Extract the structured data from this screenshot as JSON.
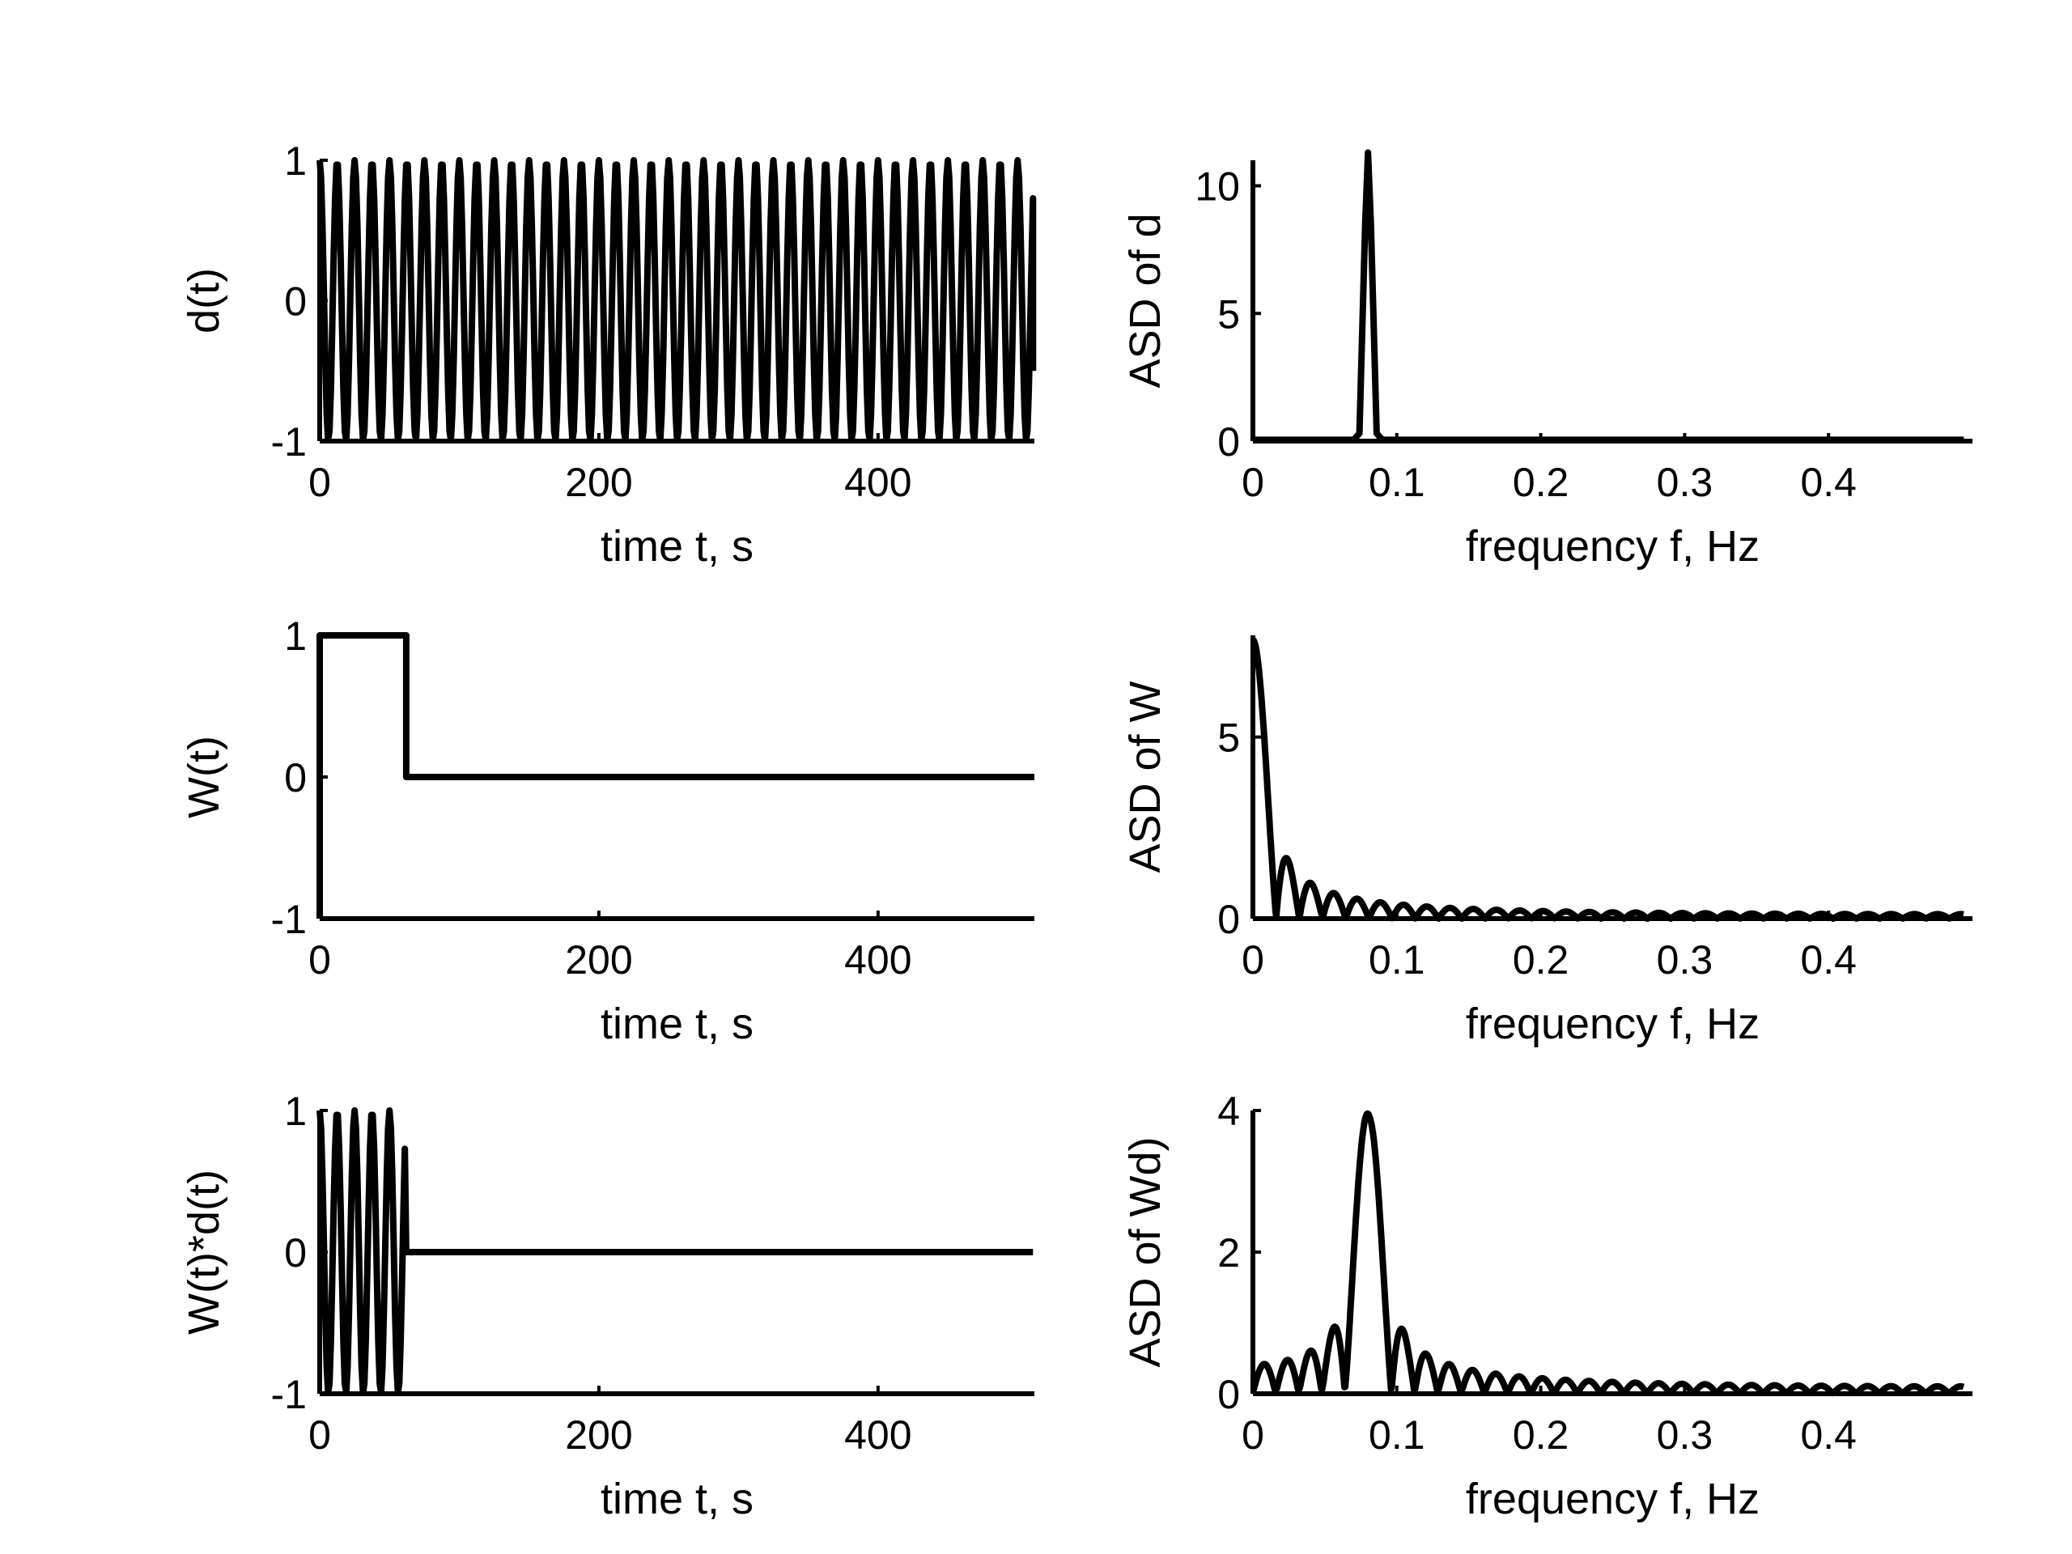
{
  "chart_data": [
    {
      "id": "d",
      "type": "line",
      "xlabel": "time t, s",
      "ylabel": "d(t)",
      "xlim": [
        0,
        512
      ],
      "ylim": [
        -1,
        1
      ],
      "x_ticks": [
        0,
        200,
        400
      ],
      "y_ticks": [
        -1,
        0,
        1
      ],
      "series": [
        {
          "function": "cos(2*pi*0.08*t)",
          "t_range": [
            0,
            511
          ],
          "sample_step_s": 1
        }
      ]
    },
    {
      "id": "asd_d",
      "type": "line",
      "xlabel": "frequency f, Hz",
      "ylabel": "ASD of d",
      "xlim": [
        0,
        0.5
      ],
      "ylim": [
        0,
        11
      ],
      "x_ticks": [
        0,
        0.1,
        0.2,
        0.3,
        0.4
      ],
      "y_ticks": [
        0,
        5,
        10
      ],
      "series": [
        {
          "description": "single narrow spectral peak",
          "x": [
            0,
            0.07,
            0.074,
            0.078,
            0.08,
            0.082,
            0.086,
            0.09,
            0.494
          ],
          "y": [
            0.05,
            0.05,
            0.3,
            8.5,
            11.3,
            8.5,
            0.3,
            0.05,
            0.05
          ]
        }
      ]
    },
    {
      "id": "W",
      "type": "line",
      "xlabel": "time t, s",
      "ylabel": "W(t)",
      "xlim": [
        0,
        512
      ],
      "ylim": [
        -1,
        1
      ],
      "x_ticks": [
        0,
        200,
        400
      ],
      "y_ticks": [
        -1,
        0,
        1
      ],
      "series": [
        {
          "x": [
            0,
            0,
            62,
            62,
            512
          ],
          "y": [
            -1,
            1,
            1,
            0,
            0
          ]
        }
      ]
    },
    {
      "id": "asd_W",
      "type": "line",
      "xlabel": "frequency f, Hz",
      "ylabel": "ASD of W",
      "xlim": [
        0,
        0.5
      ],
      "ylim": [
        0,
        7.8
      ],
      "x_ticks": [
        0,
        0.1,
        0.2,
        0.3,
        0.4
      ],
      "y_ticks": [
        0,
        5
      ],
      "series": [
        {
          "function": "|sin(pi*f*62)/(pi*f)|/sqrt(512)",
          "peak": 7.75,
          "lobe_spacing_hz": 0.0161,
          "f_range": [
            0,
            0.494
          ]
        }
      ]
    },
    {
      "id": "Wd",
      "type": "line",
      "xlabel": "time t, s",
      "ylabel": "W(t)*d(t)",
      "xlim": [
        0,
        512
      ],
      "ylim": [
        -1,
        1
      ],
      "x_ticks": [
        0,
        200,
        400
      ],
      "y_ticks": [
        -1,
        0,
        1
      ],
      "series": [
        {
          "function": "cos(2*pi*0.08*t) for t<62, else 0",
          "t_range": [
            0,
            511
          ],
          "sample_step_s": 1
        }
      ]
    },
    {
      "id": "asd_Wd",
      "type": "line",
      "xlabel": "frequency f, Hz",
      "ylabel": "ASD of Wd)",
      "xlim": [
        0,
        0.5
      ],
      "ylim": [
        0,
        4
      ],
      "x_ticks": [
        0,
        0.1,
        0.2,
        0.3,
        0.4
      ],
      "y_ticks": [
        0,
        2,
        4
      ],
      "series": [
        {
          "description": "ASD of W shifted to 0.08 Hz",
          "peak_x": 0.08,
          "peak_y": 4.0,
          "f_range": [
            0,
            0.494
          ]
        }
      ]
    }
  ]
}
